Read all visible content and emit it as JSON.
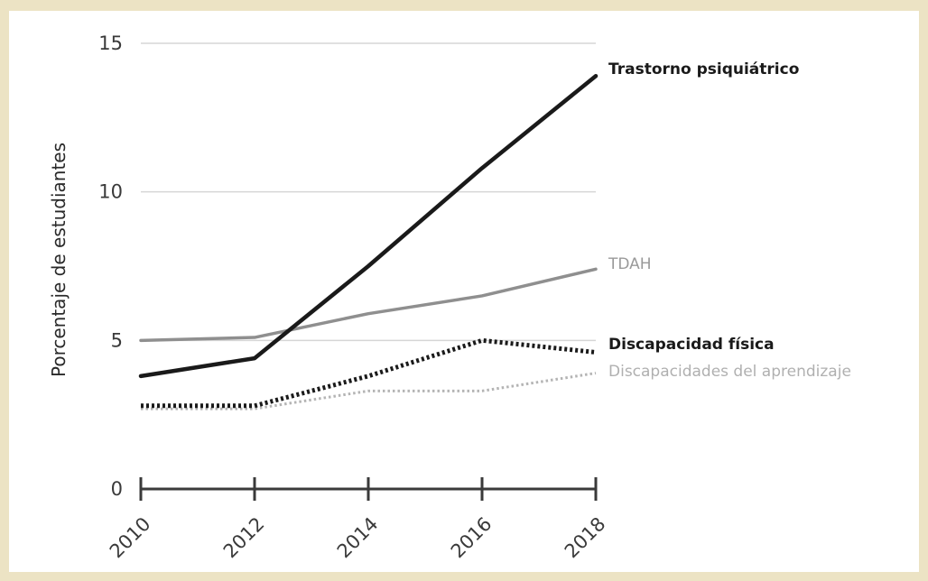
{
  "chart_data": {
    "type": "line",
    "ylabel": "Porcentaje de estudiantes",
    "x": [
      "2010",
      "2012",
      "2014",
      "2016",
      "2018"
    ],
    "xlim": [
      2010,
      2018
    ],
    "ylim": [
      0,
      15
    ],
    "yticks": [
      "0",
      "5",
      "10",
      "15"
    ],
    "grid": true,
    "series": [
      {
        "name": "Trastorno psiquiátrico",
        "color": "#1a1a1a",
        "style": "solid",
        "values": [
          3.8,
          4.4,
          7.5,
          10.8,
          13.9
        ]
      },
      {
        "name": "TDAH",
        "color": "#8f8f8f",
        "style": "solid",
        "values": [
          5.0,
          5.1,
          5.9,
          6.5,
          7.4
        ]
      },
      {
        "name": "Discapacidad física",
        "color": "#1a1a1a",
        "style": "dotted",
        "values": [
          2.8,
          2.8,
          3.8,
          5.0,
          4.6
        ]
      },
      {
        "name": "Discapacidades del aprendizaje",
        "color": "#b4b4b4",
        "style": "dotted",
        "values": [
          2.7,
          2.7,
          3.3,
          3.3,
          3.9
        ]
      }
    ]
  }
}
